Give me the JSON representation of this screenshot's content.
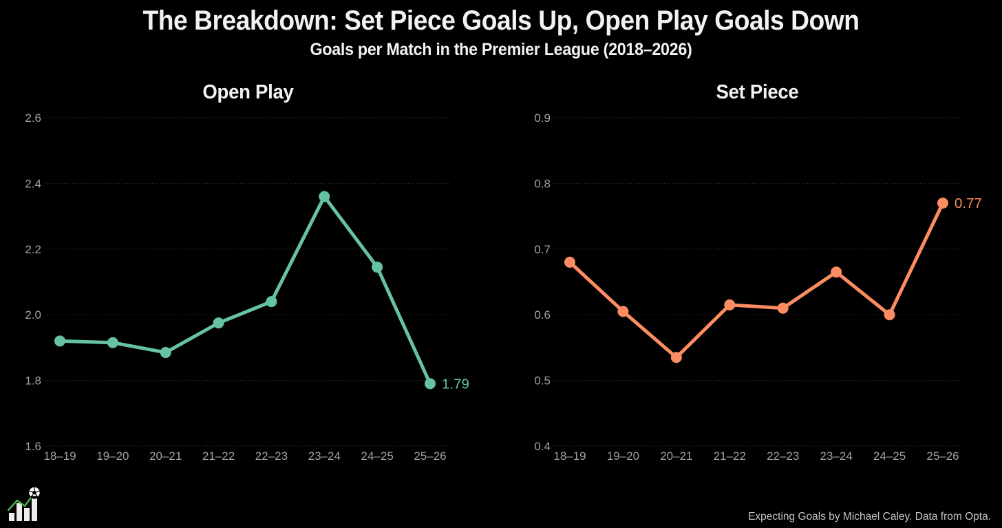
{
  "header": {
    "title": "The Breakdown: Set Piece Goals Up, Open Play Goals Down",
    "subtitle": "Goals per Match in the Premier League (2018–2026)"
  },
  "footer": {
    "attribution": "Expecting Goals by Michael Caley. Data from Opta.",
    "logo_icon": "bar-chart-trend-with-soccer-ball"
  },
  "colors": {
    "background": "#000000",
    "title_text": "#f2f2f2",
    "tick_text": "#a0a0a0",
    "gridline": "#3d3d3d",
    "open_play": "#66c2a5",
    "set_piece": "#fc8d62",
    "attribution_text": "#c6c6c6",
    "logo_trend_green": "#4caf50"
  },
  "chart_data": [
    {
      "type": "line",
      "title": "Open Play",
      "categories": [
        "18–19",
        "19–20",
        "20–21",
        "21–22",
        "22–23",
        "23–24",
        "24–25",
        "25–26"
      ],
      "values": [
        1.92,
        1.915,
        1.885,
        1.975,
        2.04,
        2.36,
        2.145,
        1.79
      ],
      "end_label": "1.79",
      "color": "#66c2a5",
      "ylim": [
        1.6,
        2.6
      ],
      "yticks": [
        1.6,
        1.8,
        2.0,
        2.2,
        2.4,
        2.6
      ],
      "xlabel": "",
      "ylabel": "",
      "grid": "horizontal dotted",
      "legend": "none"
    },
    {
      "type": "line",
      "title": "Set Piece",
      "categories": [
        "18–19",
        "19–20",
        "20–21",
        "21–22",
        "22–23",
        "23–24",
        "24–25",
        "25–26"
      ],
      "values": [
        0.68,
        0.605,
        0.535,
        0.615,
        0.61,
        0.665,
        0.6,
        0.77
      ],
      "end_label": "0.77",
      "color": "#fc8d62",
      "ylim": [
        0.4,
        0.9
      ],
      "yticks": [
        0.4,
        0.5,
        0.6,
        0.7,
        0.8,
        0.9
      ],
      "xlabel": "",
      "ylabel": "",
      "grid": "horizontal dotted",
      "legend": "none"
    }
  ]
}
